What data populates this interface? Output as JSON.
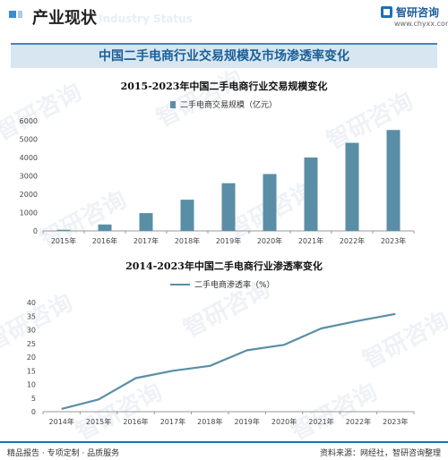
{
  "header": {
    "section_title": "产业现状",
    "section_subtitle": "Industry Status",
    "logo_name": "智研咨询",
    "logo_url": "www.chyxx.com",
    "brand_color": "#1f6fb5"
  },
  "banner": {
    "title": "中国二手电商行业交易规模及市场渗透率变化"
  },
  "chart_data": [
    {
      "type": "bar",
      "title": "2015-2023年中国二手电商行业交易规模变化",
      "legend": "二手电商交易规模（亿元）",
      "legend_position": "top-center",
      "color": "#5a8ea6",
      "categories": [
        "2015年",
        "2016年",
        "2017年",
        "2018年",
        "2019年",
        "2020年",
        "2021年",
        "2022年",
        "2023年"
      ],
      "values": [
        60,
        350,
        970,
        1700,
        2600,
        3100,
        4000,
        4800,
        5500
      ],
      "ylim": [
        0,
        6000
      ],
      "yticks": [
        0,
        1000,
        2000,
        3000,
        4000,
        5000,
        6000
      ],
      "grid": false
    },
    {
      "type": "line",
      "title": "2014-2023年中国二手电商行业渗透率变化",
      "legend": "二手电商渗透率（%）",
      "legend_position": "top-center",
      "color": "#5a8ea6",
      "categories": [
        "2014年",
        "2015年",
        "2016年",
        "2017年",
        "2018年",
        "2019年",
        "2020年",
        "2021年",
        "2022年",
        "2023年"
      ],
      "values": [
        1.0,
        4.5,
        12.3,
        15.0,
        16.8,
        22.5,
        24.5,
        30.5,
        33.3,
        35.8
      ],
      "ylim": [
        0,
        40
      ],
      "yticks": [
        0,
        5,
        10,
        15,
        20,
        25,
        30,
        35,
        40
      ],
      "grid": false
    }
  ],
  "footer": {
    "left_text": "精品报告 · 专项定制 · 品质服务",
    "right_text": "资料来源：网经社，智研咨询整理"
  }
}
